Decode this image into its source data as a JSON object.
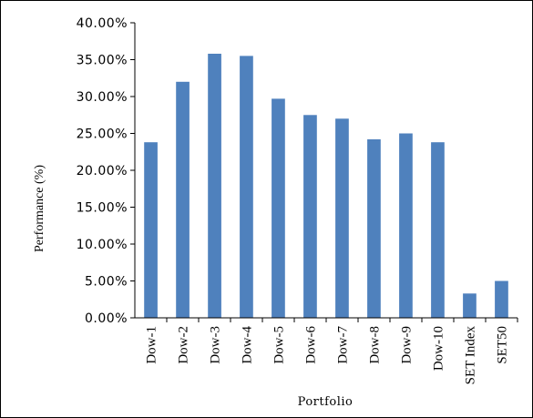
{
  "chart_data": {
    "type": "bar",
    "title": "",
    "xlabel": "Portfolio",
    "ylabel": "Performance (%)",
    "categories": [
      "Dow-1",
      "Dow-2",
      "Dow-3",
      "Dow-4",
      "Dow-5",
      "Dow-6",
      "Dow-7",
      "Dow-8",
      "Dow-9",
      "Dow-10",
      "SET Index",
      "SET50"
    ],
    "values": [
      23.8,
      32.0,
      35.8,
      35.5,
      29.7,
      27.5,
      27.0,
      24.2,
      25.0,
      23.8,
      3.3,
      5.0
    ],
    "ylim": [
      0,
      40
    ],
    "yticks": [
      "0.00%",
      "5.00%",
      "10.00%",
      "15.00%",
      "20.00%",
      "25.00%",
      "30.00%",
      "35.00%",
      "40.00%"
    ],
    "bar_color": "#4f81bd",
    "grid": false,
    "legend": "none"
  }
}
